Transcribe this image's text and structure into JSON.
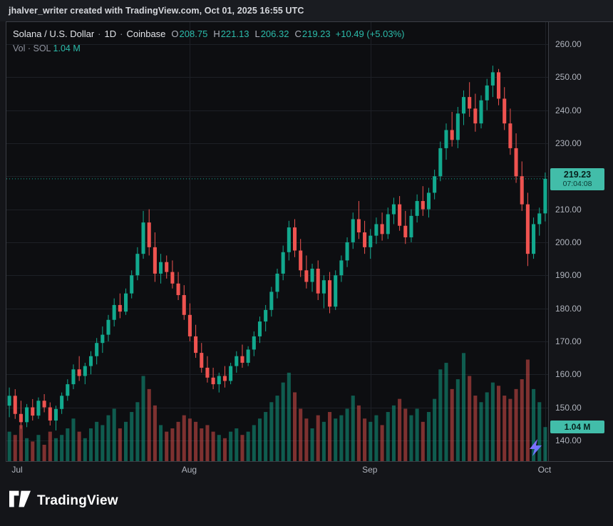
{
  "attribution": "jhalver_writer created with TradingView.com, Oct 01, 2025 16:55 UTC",
  "legend": {
    "symbol": "Solana / U.S. Dollar",
    "sep": "·",
    "interval": "1D",
    "exchange": "Coinbase",
    "ohlc": [
      {
        "k": "O",
        "v": "208.75"
      },
      {
        "k": "H",
        "v": "221.13"
      },
      {
        "k": "L",
        "v": "206.32"
      },
      {
        "k": "C",
        "v": "219.23"
      }
    ],
    "change": "+10.49 (+5.03%)",
    "vol_label": "Vol · SOL",
    "vol_value": "1.04 M"
  },
  "last_price_badge": {
    "price": "219.23",
    "countdown": "07:04:08"
  },
  "volume_badge": "1.04 M",
  "time_axis": [
    "Jul",
    "Aug",
    "Sep",
    "Oct"
  ],
  "footer": {
    "brand": "TradingView"
  },
  "colors": {
    "up": "#12a98e",
    "down": "#ef5350",
    "grid": "#1d2026",
    "axis_text": "#b0b4bd",
    "badge_bg": "#42bda9",
    "accent_text": "#2cbcab",
    "spark_purple": "#9a6bff",
    "spark_blue": "#4f79ff"
  },
  "chart_data": {
    "type": "candlestick",
    "title": "Solana / U.S. Dollar · 1D · Coinbase",
    "overlay": "volume",
    "interval": "1D",
    "range": [
      "2025-07-01",
      "2025-10-01"
    ],
    "ylim": [
      133.7,
      266.7
    ],
    "y_ticks": [
      140,
      150,
      160,
      170,
      180,
      190,
      200,
      210,
      220,
      230,
      240,
      250,
      260
    ],
    "vol_ylim_m": [
      0,
      13.4
    ],
    "last": {
      "open": 208.75,
      "high": 221.13,
      "low": 206.32,
      "close": 219.23,
      "change": 10.49,
      "change_pct": 5.03,
      "volume_m": 1.04
    },
    "ohlc": [
      [
        150.5,
        156.0,
        147.0,
        153.5
      ],
      [
        153.5,
        155.5,
        146.5,
        148.0
      ],
      [
        148.0,
        152.0,
        143.5,
        145.5
      ],
      [
        145.5,
        151.0,
        144.0,
        150.0
      ],
      [
        150.0,
        152.5,
        146.0,
        147.5
      ],
      [
        147.5,
        153.0,
        146.5,
        152.0
      ],
      [
        152.0,
        154.0,
        148.5,
        150.0
      ],
      [
        150.0,
        151.5,
        144.5,
        146.0
      ],
      [
        146.0,
        150.5,
        143.0,
        149.5
      ],
      [
        149.5,
        154.5,
        148.0,
        153.5
      ],
      [
        153.5,
        158.5,
        152.0,
        157.0
      ],
      [
        157.0,
        163.0,
        155.5,
        161.5
      ],
      [
        161.5,
        165.5,
        158.0,
        159.5
      ],
      [
        159.5,
        163.5,
        157.0,
        162.5
      ],
      [
        162.5,
        167.0,
        160.0,
        165.5
      ],
      [
        165.5,
        171.0,
        163.0,
        169.5
      ],
      [
        169.5,
        174.5,
        166.5,
        172.0
      ],
      [
        172.0,
        178.0,
        170.0,
        176.5
      ],
      [
        176.5,
        183.0,
        174.5,
        181.0
      ],
      [
        181.0,
        184.5,
        177.0,
        179.0
      ],
      [
        179.0,
        186.0,
        178.0,
        184.5
      ],
      [
        184.5,
        191.5,
        183.0,
        190.0
      ],
      [
        190.0,
        198.5,
        188.5,
        196.5
      ],
      [
        196.5,
        209.5,
        195.0,
        206.0
      ],
      [
        206.0,
        210.0,
        196.0,
        198.5
      ],
      [
        198.5,
        203.0,
        188.0,
        190.5
      ],
      [
        190.5,
        196.5,
        187.5,
        194.0
      ],
      [
        194.0,
        196.0,
        189.0,
        191.0
      ],
      [
        191.0,
        194.5,
        186.0,
        187.5
      ],
      [
        187.5,
        191.0,
        182.5,
        184.0
      ],
      [
        184.0,
        187.0,
        176.5,
        178.0
      ],
      [
        178.0,
        181.5,
        170.0,
        171.5
      ],
      [
        171.5,
        175.0,
        165.0,
        166.5
      ],
      [
        166.5,
        169.5,
        160.5,
        162.0
      ],
      [
        162.0,
        165.5,
        157.5,
        159.0
      ],
      [
        159.0,
        162.0,
        155.5,
        157.0
      ],
      [
        157.0,
        160.5,
        154.5,
        159.5
      ],
      [
        159.5,
        162.5,
        156.0,
        158.0
      ],
      [
        158.0,
        163.5,
        157.0,
        162.5
      ],
      [
        162.5,
        167.0,
        160.5,
        165.5
      ],
      [
        165.5,
        169.0,
        162.0,
        163.5
      ],
      [
        163.5,
        168.5,
        162.5,
        167.5
      ],
      [
        167.5,
        173.0,
        165.5,
        171.5
      ],
      [
        171.5,
        177.5,
        169.5,
        176.0
      ],
      [
        176.0,
        181.0,
        173.0,
        179.5
      ],
      [
        179.5,
        186.5,
        177.5,
        185.0
      ],
      [
        185.0,
        192.0,
        183.0,
        190.5
      ],
      [
        190.5,
        199.0,
        188.5,
        197.0
      ],
      [
        197.0,
        206.5,
        194.5,
        204.5
      ],
      [
        204.5,
        207.0,
        195.5,
        197.5
      ],
      [
        197.5,
        201.0,
        189.5,
        191.5
      ],
      [
        191.5,
        196.0,
        186.0,
        188.0
      ],
      [
        188.0,
        193.5,
        185.0,
        192.0
      ],
      [
        192.0,
        194.5,
        182.5,
        184.5
      ],
      [
        184.5,
        190.0,
        180.0,
        188.5
      ],
      [
        188.5,
        191.0,
        178.5,
        180.5
      ],
      [
        180.5,
        191.5,
        179.5,
        190.0
      ],
      [
        190.0,
        196.0,
        188.0,
        194.5
      ],
      [
        194.5,
        201.5,
        192.5,
        200.0
      ],
      [
        200.0,
        209.0,
        198.0,
        207.0
      ],
      [
        207.0,
        212.5,
        201.0,
        203.0
      ],
      [
        203.0,
        206.5,
        196.5,
        198.5
      ],
      [
        198.5,
        204.0,
        195.0,
        202.0
      ],
      [
        202.0,
        207.5,
        199.5,
        205.5
      ],
      [
        205.5,
        209.0,
        200.5,
        202.5
      ],
      [
        202.5,
        210.5,
        201.0,
        208.5
      ],
      [
        208.5,
        213.5,
        205.5,
        211.5
      ],
      [
        211.5,
        214.0,
        203.5,
        205.0
      ],
      [
        205.0,
        209.5,
        199.5,
        201.5
      ],
      [
        201.5,
        210.0,
        200.0,
        208.0
      ],
      [
        208.0,
        214.5,
        206.0,
        212.5
      ],
      [
        212.5,
        217.0,
        208.0,
        210.0
      ],
      [
        210.0,
        216.5,
        207.5,
        215.0
      ],
      [
        215.0,
        222.0,
        213.0,
        220.0
      ],
      [
        220.0,
        230.5,
        218.5,
        228.5
      ],
      [
        228.5,
        236.0,
        225.0,
        234.0
      ],
      [
        234.0,
        239.5,
        229.0,
        231.0
      ],
      [
        231.0,
        241.0,
        228.5,
        239.0
      ],
      [
        239.0,
        246.0,
        235.5,
        244.0
      ],
      [
        244.0,
        248.5,
        238.0,
        240.5
      ],
      [
        240.5,
        245.0,
        233.5,
        236.0
      ],
      [
        236.0,
        244.5,
        234.5,
        243.0
      ],
      [
        243.0,
        249.5,
        240.0,
        247.5
      ],
      [
        247.5,
        253.5,
        244.0,
        251.5
      ],
      [
        251.5,
        252.5,
        241.5,
        243.5
      ],
      [
        243.5,
        247.0,
        234.0,
        236.0
      ],
      [
        236.0,
        240.5,
        226.5,
        228.5
      ],
      [
        228.5,
        233.0,
        218.0,
        220.0
      ],
      [
        220.0,
        224.5,
        209.5,
        211.5
      ],
      [
        211.5,
        215.0,
        192.8,
        196.5
      ],
      [
        196.5,
        207.5,
        195.0,
        205.5
      ],
      [
        205.5,
        210.5,
        202.0,
        208.74
      ],
      [
        208.75,
        221.13,
        206.32,
        219.23
      ]
    ],
    "volume_m": [
      0.9,
      0.8,
      1.1,
      0.7,
      0.6,
      0.8,
      0.5,
      0.9,
      0.7,
      0.8,
      1.0,
      1.3,
      0.9,
      0.7,
      1.0,
      1.2,
      1.1,
      1.4,
      1.6,
      1.0,
      1.2,
      1.5,
      1.8,
      2.6,
      2.2,
      1.7,
      1.1,
      0.9,
      1.0,
      1.2,
      1.4,
      1.3,
      1.2,
      1.0,
      1.1,
      0.9,
      0.8,
      0.7,
      0.9,
      1.0,
      0.8,
      0.9,
      1.1,
      1.3,
      1.5,
      1.8,
      2.0,
      2.4,
      2.7,
      2.1,
      1.6,
      1.3,
      1.0,
      1.4,
      1.2,
      1.5,
      1.3,
      1.4,
      1.6,
      2.0,
      1.7,
      1.3,
      1.2,
      1.4,
      1.1,
      1.5,
      1.7,
      1.9,
      1.6,
      1.4,
      1.6,
      1.2,
      1.5,
      1.9,
      2.8,
      3.0,
      2.2,
      2.5,
      3.3,
      2.6,
      2.0,
      1.8,
      2.1,
      2.4,
      2.3,
      2.0,
      1.9,
      2.2,
      2.5,
      3.1,
      2.2,
      1.8,
      1.04
    ]
  }
}
